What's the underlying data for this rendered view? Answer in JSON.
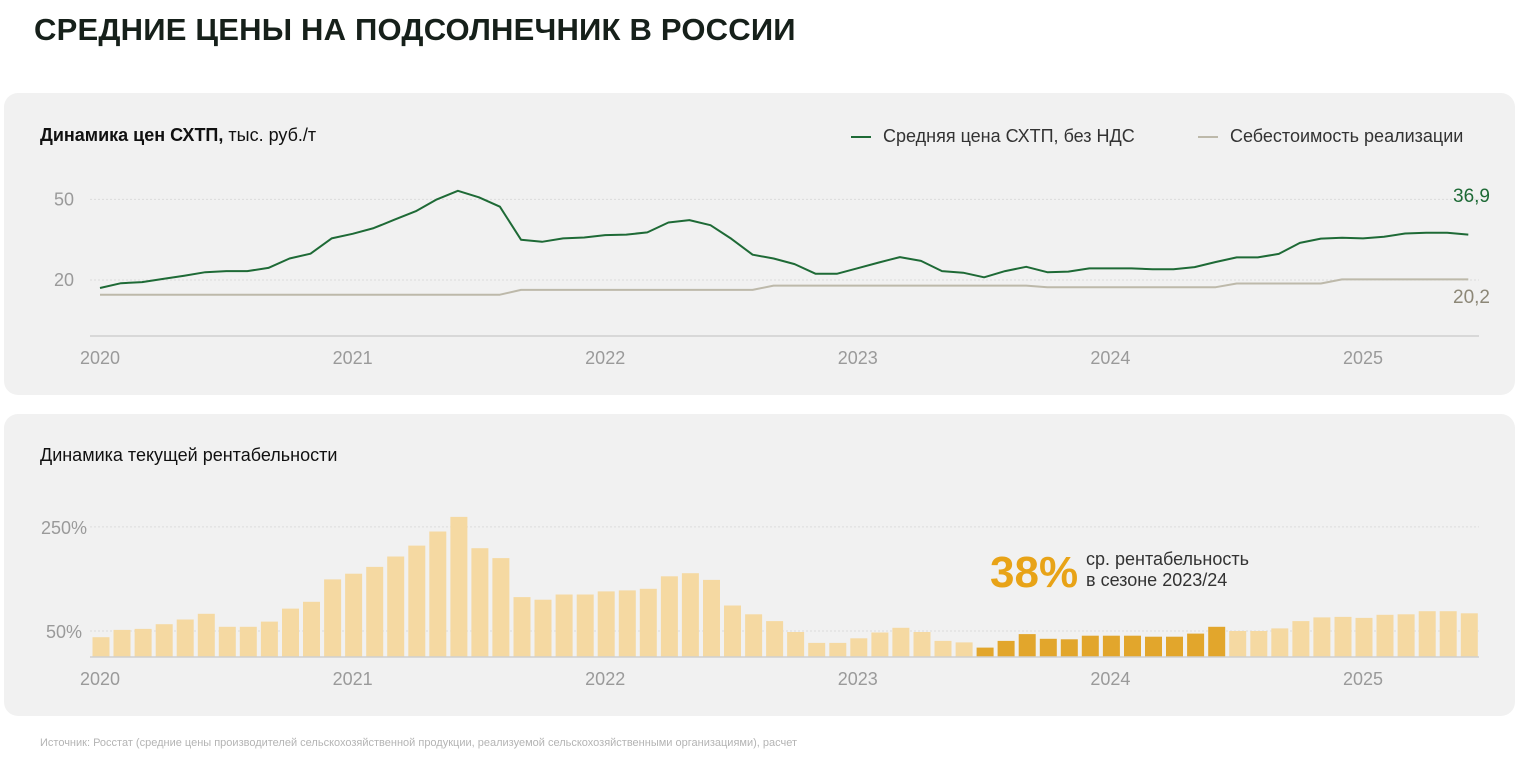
{
  "title": "СРЕДНИЕ ЦЕНЫ НА ПОДСОЛНЕЧНИК В РОССИИ",
  "source": "Источник: Росстат (средние цены производителей сельскохозяйственной продукции, реализуемой сельскохозяйственными организациями), расчет",
  "colors": {
    "price_line": "#1e6a36",
    "cost_line": "#bdb9aa",
    "bar_light": "#f5d9a2",
    "bar_highlight": "#e2a62c",
    "highlight_text": "#e8a317",
    "panel_bg": "#f1f1f1"
  },
  "chart_data": [
    {
      "type": "line",
      "title_bold": "Динамика цен СХТП,",
      "title_unit": "тыс. руб./т",
      "x_tick_labels": [
        "2020",
        "2021",
        "2022",
        "2023",
        "2024",
        "2025"
      ],
      "y_tick_labels": [
        "50",
        "20"
      ],
      "y_ticks": [
        50,
        20
      ],
      "ylim": [
        -0.5,
        55
      ],
      "x_start": "2020-01",
      "grid": true,
      "legend_position": "top-right",
      "series": [
        {
          "name": "Средняя цена СХТП, без НДС",
          "end_label": "36,9",
          "values": [
            17.0,
            18.8,
            19.2,
            20.4,
            21.6,
            22.9,
            23.3,
            23.3,
            24.5,
            28.0,
            29.8,
            35.5,
            37.2,
            39.3,
            42.5,
            45.6,
            50.0,
            53.2,
            50.8,
            47.3,
            35.0,
            34.2,
            35.5,
            35.8,
            36.7,
            36.9,
            37.7,
            41.4,
            42.3,
            40.4,
            35.3,
            29.4,
            28.0,
            25.9,
            22.3,
            22.3,
            24.4,
            26.5,
            28.5,
            27.1,
            23.3,
            22.7,
            21.0,
            23.3,
            24.9,
            22.9,
            23.1,
            24.3,
            24.3,
            24.3,
            24.0,
            24.0,
            24.8,
            26.7,
            28.4,
            28.4,
            29.7,
            33.8,
            35.4,
            35.7,
            35.5,
            36.1,
            37.3,
            37.6,
            37.6,
            36.9
          ]
        },
        {
          "name": "Себестоимость реализации",
          "end_label": "20,2",
          "values": [
            14.5,
            14.5,
            14.5,
            14.5,
            14.5,
            14.5,
            14.5,
            14.5,
            14.5,
            14.5,
            14.5,
            14.5,
            14.5,
            14.5,
            14.5,
            14.5,
            14.5,
            14.5,
            14.5,
            14.5,
            16.3,
            16.3,
            16.3,
            16.3,
            16.3,
            16.3,
            16.3,
            16.3,
            16.3,
            16.3,
            16.3,
            16.3,
            17.9,
            17.9,
            17.9,
            17.9,
            17.9,
            17.9,
            17.9,
            17.9,
            17.9,
            17.9,
            17.9,
            17.9,
            17.9,
            17.3,
            17.3,
            17.3,
            17.3,
            17.3,
            17.3,
            17.3,
            17.3,
            17.3,
            18.7,
            18.7,
            18.7,
            18.7,
            18.7,
            20.2,
            20.2,
            20.2,
            20.2,
            20.2,
            20.2,
            20.2
          ]
        }
      ]
    },
    {
      "type": "bar",
      "title": "Динамика текущей рентабельности",
      "x_tick_labels": [
        "2020",
        "2021",
        "2022",
        "2023",
        "2024",
        "2025"
      ],
      "y_tick_labels": [
        "250%",
        "50%"
      ],
      "y_ticks": [
        250,
        50
      ],
      "ylim": [
        0,
        290
      ],
      "x_start": "2020-01",
      "grid": true,
      "highlight_range": [
        "2023-07",
        "2024-06"
      ],
      "values": [
        38,
        52,
        54,
        63,
        72,
        83,
        58,
        58,
        68,
        93,
        106,
        149,
        160,
        173,
        193,
        214,
        241,
        269,
        209,
        190,
        115,
        110,
        120,
        120,
        126,
        128,
        131,
        155,
        161,
        148,
        99,
        82,
        69,
        48,
        27,
        27,
        36,
        47,
        56,
        48,
        31,
        28,
        18,
        31,
        44,
        35,
        34,
        41,
        41,
        41,
        39,
        39,
        45,
        58,
        50,
        50,
        55,
        69,
        76,
        77,
        75,
        81,
        82,
        88,
        88,
        84
      ],
      "annotation": {
        "value": "38%",
        "line1": "ср. рентабельность",
        "line2": "в сезоне 2023/24"
      }
    }
  ]
}
